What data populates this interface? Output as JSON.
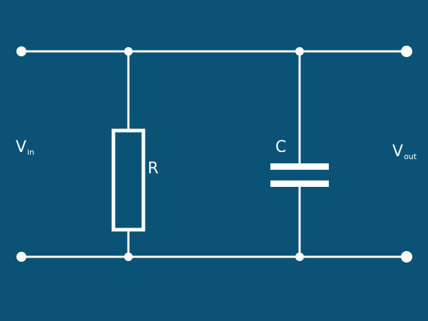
{
  "diagram": {
    "labels": {
      "vin_main": "V",
      "vin_sub": "in",
      "vout_main": "V",
      "vout_sub": "out",
      "resistor": "R",
      "capacitor": "C"
    },
    "colors": {
      "background": "#0b5277",
      "wire": "#ffffff"
    },
    "components": [
      "resistor",
      "capacitor"
    ]
  }
}
